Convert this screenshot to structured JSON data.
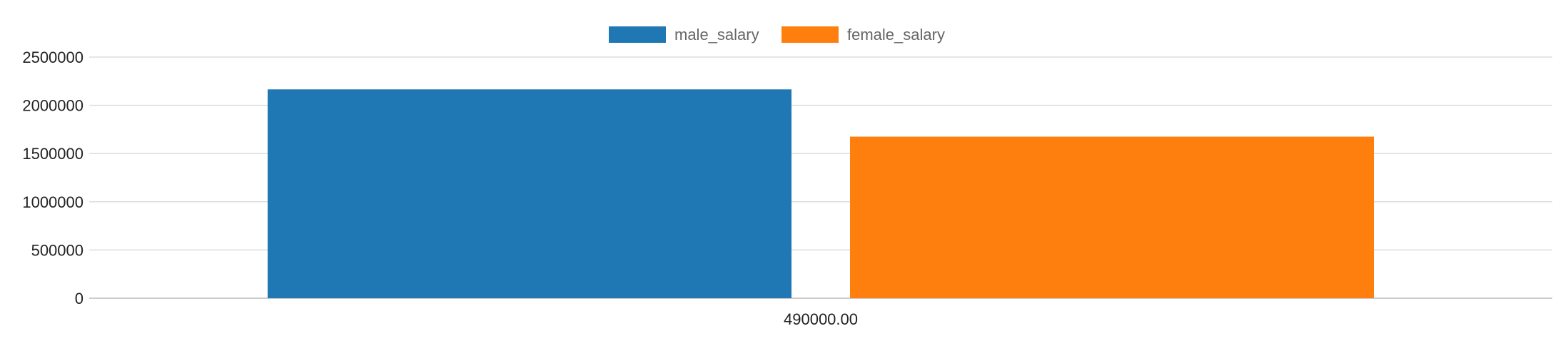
{
  "chart_data": {
    "type": "bar",
    "categories": [
      "490000.00"
    ],
    "series": [
      {
        "name": "male_salary",
        "values": [
          2165000
        ],
        "color": "#1f77b4"
      },
      {
        "name": "female_salary",
        "values": [
          1675000
        ],
        "color": "#ff7f0e"
      }
    ],
    "ylim": [
      0,
      2500000
    ],
    "yticks": [
      "0",
      "500000",
      "1000000",
      "1500000",
      "2000000",
      "2500000"
    ],
    "grid": true,
    "legend": "top-center",
    "title": "",
    "xlabel": "",
    "ylabel": ""
  }
}
